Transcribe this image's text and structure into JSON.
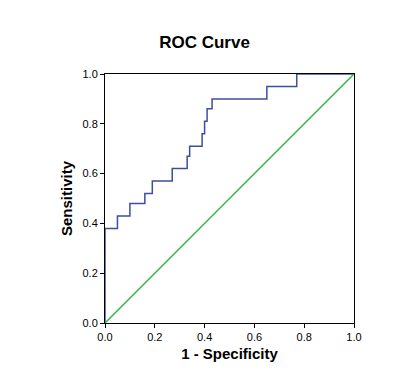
{
  "chart_data": {
    "type": "line",
    "title": "ROC Curve",
    "x_label": "1 - Specificity",
    "y_label": "Sensitivity",
    "series": [
      {
        "color": "#3c4f9e",
        "line_style": "step",
        "x": [
          0,
          0,
          0.05,
          0.1,
          0.16,
          0.19,
          0.27,
          0.33,
          0.34,
          0.39,
          0.4,
          0.41,
          0.43,
          0.65,
          0.77,
          1.0
        ],
        "values": [
          0,
          0.38,
          0.43,
          0.48,
          0.52,
          0.57,
          0.62,
          0.67,
          0.71,
          0.76,
          0.81,
          0.86,
          0.9,
          0.95,
          1.0,
          1.0
        ]
      },
      {
        "color": "#3cb34a",
        "line_style": "solid",
        "x": [
          0,
          1
        ],
        "values": [
          0,
          1
        ]
      }
    ],
    "xlim": [
      0,
      1
    ],
    "ylim": [
      0,
      1
    ],
    "xticks": [
      {
        "value": 0,
        "label": "0.0"
      },
      {
        "value": 0.2,
        "label": "0.2"
      },
      {
        "value": 0.4,
        "label": "0.4"
      },
      {
        "value": 0.6,
        "label": "0.6"
      },
      {
        "value": 0.8,
        "label": "0.8"
      },
      {
        "value": 1,
        "label": "1.0"
      }
    ],
    "yticks": [
      {
        "value": 0,
        "label": "0.0"
      },
      {
        "value": 0.2,
        "label": "0.2"
      },
      {
        "value": 0.4,
        "label": "0.4"
      },
      {
        "value": 0.6,
        "label": "0.6"
      },
      {
        "value": 0.8,
        "label": "0.8"
      },
      {
        "value": 1,
        "label": "1.0"
      }
    ],
    "grid": false
  }
}
